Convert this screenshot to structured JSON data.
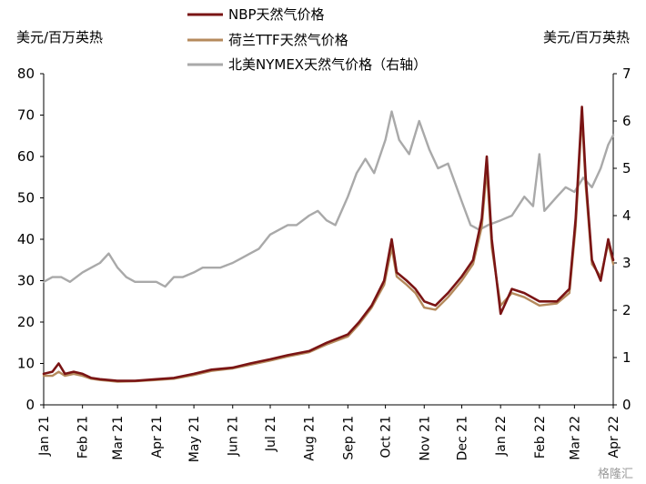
{
  "chart_data": {
    "type": "line",
    "units": {
      "left": "美元/百万英热",
      "right": "美元/百万英热"
    },
    "y_left": {
      "ylim": [
        0,
        80
      ],
      "ticks": [
        0,
        10,
        20,
        30,
        40,
        50,
        60,
        70,
        80
      ]
    },
    "y_right": {
      "ylim": [
        0,
        7
      ],
      "ticks": [
        0,
        1,
        2,
        3,
        4,
        5,
        6,
        7
      ]
    },
    "x_ticks": [
      "Jan 21",
      "Feb 21",
      "Mar 21",
      "Apr 21",
      "May 21",
      "Jun 21",
      "Jul 21",
      "Aug 21",
      "Sep 21",
      "Oct 21",
      "Nov 21",
      "Dec 21",
      "Jan 22",
      "Feb 22",
      "Mar 22",
      "Apr 22"
    ],
    "legend_position": "top-center",
    "series": [
      {
        "name": "NBP天然气价格",
        "axis": "left",
        "color": "#7a1414",
        "points": [
          [
            "2021-01-01",
            7.5
          ],
          [
            "2021-01-08",
            8.0
          ],
          [
            "2021-01-13",
            10.0
          ],
          [
            "2021-01-18",
            7.5
          ],
          [
            "2021-01-25",
            8.0
          ],
          [
            "2021-02-01",
            7.5
          ],
          [
            "2021-02-08",
            6.5
          ],
          [
            "2021-02-15",
            6.2
          ],
          [
            "2021-02-22",
            6.0
          ],
          [
            "2021-03-01",
            5.8
          ],
          [
            "2021-03-15",
            5.8
          ],
          [
            "2021-04-01",
            6.2
          ],
          [
            "2021-04-15",
            6.5
          ],
          [
            "2021-05-01",
            7.5
          ],
          [
            "2021-05-15",
            8.5
          ],
          [
            "2021-06-01",
            9.0
          ],
          [
            "2021-06-15",
            10.0
          ],
          [
            "2021-07-01",
            11.0
          ],
          [
            "2021-07-15",
            12.0
          ],
          [
            "2021-08-01",
            13.0
          ],
          [
            "2021-08-15",
            15.0
          ],
          [
            "2021-09-01",
            17.0
          ],
          [
            "2021-09-10",
            20.0
          ],
          [
            "2021-09-20",
            24.0
          ],
          [
            "2021-09-30",
            30.0
          ],
          [
            "2021-10-06",
            40.0
          ],
          [
            "2021-10-10",
            32.0
          ],
          [
            "2021-10-18",
            30.0
          ],
          [
            "2021-10-25",
            28.0
          ],
          [
            "2021-11-01",
            25.0
          ],
          [
            "2021-11-10",
            24.0
          ],
          [
            "2021-11-20",
            27.0
          ],
          [
            "2021-12-01",
            31.0
          ],
          [
            "2021-12-10",
            35.0
          ],
          [
            "2021-12-17",
            45.0
          ],
          [
            "2021-12-21",
            60.0
          ],
          [
            "2021-12-25",
            40.0
          ],
          [
            "2022-01-01",
            22.0
          ],
          [
            "2022-01-10",
            28.0
          ],
          [
            "2022-01-20",
            27.0
          ],
          [
            "2022-02-01",
            25.0
          ],
          [
            "2022-02-15",
            25.0
          ],
          [
            "2022-02-25",
            28.0
          ],
          [
            "2022-03-02",
            45.0
          ],
          [
            "2022-03-07",
            72.0
          ],
          [
            "2022-03-10",
            55.0
          ],
          [
            "2022-03-15",
            35.0
          ],
          [
            "2022-03-22",
            30.0
          ],
          [
            "2022-03-28",
            40.0
          ],
          [
            "2022-04-01",
            35.0
          ]
        ]
      },
      {
        "name": "荷兰TTF天然气价格",
        "axis": "left",
        "color": "#b58a5c",
        "points": [
          [
            "2021-01-01",
            7.0
          ],
          [
            "2021-01-08",
            7.0
          ],
          [
            "2021-01-13",
            8.0
          ],
          [
            "2021-01-18",
            7.0
          ],
          [
            "2021-01-25",
            7.5
          ],
          [
            "2021-02-01",
            7.0
          ],
          [
            "2021-02-08",
            6.3
          ],
          [
            "2021-02-15",
            6.0
          ],
          [
            "2021-02-22",
            5.8
          ],
          [
            "2021-03-01",
            5.6
          ],
          [
            "2021-03-15",
            5.7
          ],
          [
            "2021-04-01",
            6.0
          ],
          [
            "2021-04-15",
            6.3
          ],
          [
            "2021-05-01",
            7.2
          ],
          [
            "2021-05-15",
            8.2
          ],
          [
            "2021-06-01",
            8.8
          ],
          [
            "2021-06-15",
            9.7
          ],
          [
            "2021-07-01",
            10.7
          ],
          [
            "2021-07-15",
            11.7
          ],
          [
            "2021-08-01",
            12.7
          ],
          [
            "2021-08-15",
            14.6
          ],
          [
            "2021-09-01",
            16.5
          ],
          [
            "2021-09-10",
            19.5
          ],
          [
            "2021-09-20",
            23.5
          ],
          [
            "2021-09-30",
            29.0
          ],
          [
            "2021-10-06",
            38.0
          ],
          [
            "2021-10-10",
            31.0
          ],
          [
            "2021-10-18",
            29.0
          ],
          [
            "2021-10-25",
            27.0
          ],
          [
            "2021-11-01",
            23.5
          ],
          [
            "2021-11-10",
            23.0
          ],
          [
            "2021-11-20",
            26.0
          ],
          [
            "2021-12-01",
            30.0
          ],
          [
            "2021-12-10",
            34.0
          ],
          [
            "2021-12-17",
            43.0
          ],
          [
            "2021-12-21",
            57.0
          ],
          [
            "2021-12-25",
            38.0
          ],
          [
            "2022-01-01",
            24.0
          ],
          [
            "2022-01-10",
            27.0
          ],
          [
            "2022-01-20",
            26.0
          ],
          [
            "2022-02-01",
            24.0
          ],
          [
            "2022-02-15",
            24.5
          ],
          [
            "2022-02-25",
            27.0
          ],
          [
            "2022-03-02",
            43.0
          ],
          [
            "2022-03-07",
            70.0
          ],
          [
            "2022-03-10",
            53.0
          ],
          [
            "2022-03-15",
            34.0
          ],
          [
            "2022-03-22",
            31.0
          ],
          [
            "2022-03-28",
            39.0
          ],
          [
            "2022-04-01",
            34.0
          ]
        ]
      },
      {
        "name": "北美NYMEX天然气价格（右轴）",
        "axis": "right",
        "color": "#a9a9a9",
        "points": [
          [
            "2021-01-01",
            2.6
          ],
          [
            "2021-01-08",
            2.7
          ],
          [
            "2021-01-15",
            2.7
          ],
          [
            "2021-01-22",
            2.6
          ],
          [
            "2021-02-01",
            2.8
          ],
          [
            "2021-02-08",
            2.9
          ],
          [
            "2021-02-15",
            3.0
          ],
          [
            "2021-02-22",
            3.2
          ],
          [
            "2021-03-01",
            2.9
          ],
          [
            "2021-03-08",
            2.7
          ],
          [
            "2021-03-15",
            2.6
          ],
          [
            "2021-03-22",
            2.6
          ],
          [
            "2021-04-01",
            2.6
          ],
          [
            "2021-04-08",
            2.5
          ],
          [
            "2021-04-15",
            2.7
          ],
          [
            "2021-04-22",
            2.7
          ],
          [
            "2021-05-01",
            2.8
          ],
          [
            "2021-05-08",
            2.9
          ],
          [
            "2021-05-15",
            2.9
          ],
          [
            "2021-05-22",
            2.9
          ],
          [
            "2021-06-01",
            3.0
          ],
          [
            "2021-06-08",
            3.1
          ],
          [
            "2021-06-15",
            3.2
          ],
          [
            "2021-06-22",
            3.3
          ],
          [
            "2021-07-01",
            3.6
          ],
          [
            "2021-07-08",
            3.7
          ],
          [
            "2021-07-15",
            3.8
          ],
          [
            "2021-07-22",
            3.8
          ],
          [
            "2021-08-01",
            4.0
          ],
          [
            "2021-08-08",
            4.1
          ],
          [
            "2021-08-15",
            3.9
          ],
          [
            "2021-08-22",
            3.8
          ],
          [
            "2021-09-01",
            4.4
          ],
          [
            "2021-09-08",
            4.9
          ],
          [
            "2021-09-15",
            5.2
          ],
          [
            "2021-09-22",
            4.9
          ],
          [
            "2021-10-01",
            5.6
          ],
          [
            "2021-10-06",
            6.2
          ],
          [
            "2021-10-12",
            5.6
          ],
          [
            "2021-10-20",
            5.3
          ],
          [
            "2021-10-28",
            6.0
          ],
          [
            "2021-11-05",
            5.4
          ],
          [
            "2021-11-12",
            5.0
          ],
          [
            "2021-11-20",
            5.1
          ],
          [
            "2021-12-01",
            4.3
          ],
          [
            "2021-12-08",
            3.8
          ],
          [
            "2021-12-15",
            3.7
          ],
          [
            "2021-12-22",
            3.8
          ],
          [
            "2022-01-01",
            3.9
          ],
          [
            "2022-01-10",
            4.0
          ],
          [
            "2022-01-20",
            4.4
          ],
          [
            "2022-01-27",
            4.2
          ],
          [
            "2022-02-01",
            5.3
          ],
          [
            "2022-02-05",
            4.1
          ],
          [
            "2022-02-15",
            4.4
          ],
          [
            "2022-02-22",
            4.6
          ],
          [
            "2022-03-01",
            4.5
          ],
          [
            "2022-03-08",
            4.8
          ],
          [
            "2022-03-15",
            4.6
          ],
          [
            "2022-03-22",
            5.0
          ],
          [
            "2022-03-28",
            5.5
          ],
          [
            "2022-04-01",
            5.7
          ]
        ]
      }
    ]
  },
  "watermark": "格隆汇"
}
